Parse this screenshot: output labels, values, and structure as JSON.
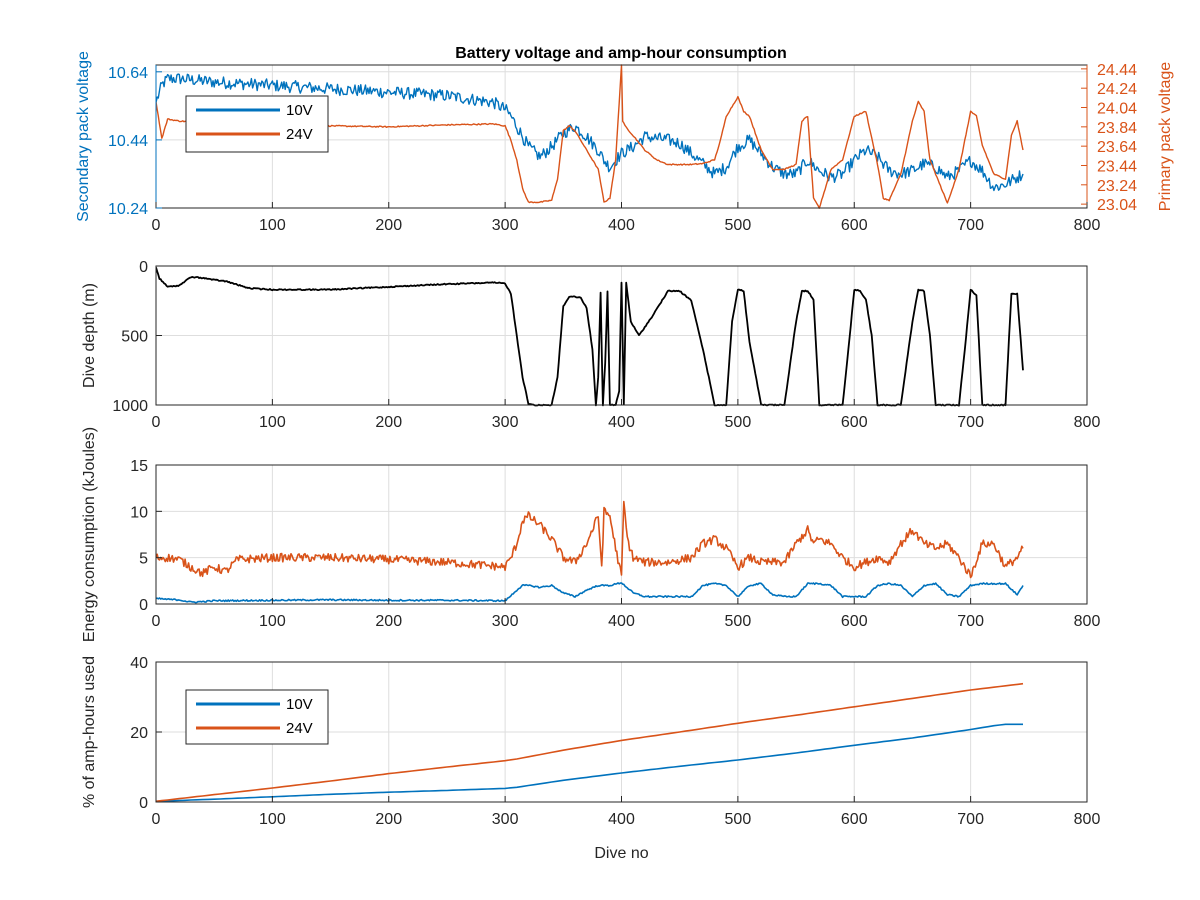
{
  "figure": {
    "title": "Battery voltage and amp-hour consumption"
  },
  "colors": {
    "blue": "#0072BD",
    "orange": "#D95319",
    "black": "#000000",
    "axis": "#262626"
  },
  "chart_data": [
    {
      "id": "voltage",
      "type": "line",
      "title": "Battery voltage and amp-hour consumption",
      "xlabel": "",
      "ylabel": "Secondary pack voltage",
      "ylabel_right": "Primary pack voltage",
      "xlim": [
        0,
        800
      ],
      "xticks": [
        0,
        100,
        200,
        300,
        400,
        500,
        600,
        700,
        800
      ],
      "ylim": [
        10.24,
        10.66
      ],
      "yticks": [
        10.24,
        10.44,
        10.64
      ],
      "ylim_right": [
        23.0,
        24.48
      ],
      "yticks_right": [
        23.04,
        23.24,
        23.44,
        23.64,
        23.84,
        24.04,
        24.24,
        24.44
      ],
      "grid": true,
      "legend": {
        "placement": "top-left",
        "entries": [
          "10V",
          "24V"
        ]
      },
      "series": [
        {
          "name": "10V",
          "color": "#0072BD",
          "axis": "left",
          "noise": 0.018,
          "x": [
            0,
            5,
            10,
            20,
            50,
            100,
            150,
            200,
            250,
            290,
            300,
            305,
            310,
            315,
            320,
            330,
            340,
            350,
            360,
            370,
            380,
            385,
            390,
            395,
            400,
            410,
            420,
            440,
            450,
            460,
            470,
            480,
            490,
            500,
            510,
            520,
            530,
            540,
            550,
            560,
            570,
            580,
            590,
            600,
            610,
            620,
            630,
            640,
            650,
            660,
            670,
            680,
            690,
            700,
            710,
            720,
            730,
            740,
            745
          ],
          "y": [
            10.55,
            10.6,
            10.62,
            10.62,
            10.61,
            10.6,
            10.59,
            10.58,
            10.57,
            10.55,
            10.53,
            10.51,
            10.48,
            10.45,
            10.42,
            10.39,
            10.42,
            10.46,
            10.48,
            10.45,
            10.41,
            10.38,
            10.36,
            10.38,
            10.4,
            10.42,
            10.45,
            10.44,
            10.43,
            10.4,
            10.37,
            10.34,
            10.36,
            10.42,
            10.44,
            10.4,
            10.36,
            10.34,
            10.34,
            10.38,
            10.35,
            10.33,
            10.34,
            10.38,
            10.41,
            10.39,
            10.35,
            10.34,
            10.35,
            10.37,
            10.36,
            10.33,
            10.35,
            10.38,
            10.35,
            10.3,
            10.31,
            10.33,
            10.34
          ]
        },
        {
          "name": "24V",
          "color": "#D95319",
          "axis": "right",
          "noise": 0.006,
          "x": [
            0,
            5,
            10,
            20,
            50,
            100,
            150,
            200,
            250,
            290,
            300,
            305,
            310,
            315,
            320,
            330,
            340,
            345,
            350,
            355,
            360,
            370,
            375,
            380,
            385,
            390,
            395,
            400,
            401,
            403,
            410,
            420,
            430,
            440,
            450,
            460,
            470,
            480,
            485,
            490,
            495,
            500,
            505,
            510,
            520,
            530,
            540,
            550,
            555,
            560,
            565,
            570,
            580,
            590,
            600,
            610,
            620,
            625,
            630,
            640,
            650,
            655,
            660,
            665,
            670,
            680,
            690,
            695,
            700,
            705,
            710,
            720,
            730,
            735,
            740,
            745
          ],
          "y": [
            24.1,
            23.72,
            23.92,
            23.9,
            23.88,
            23.86,
            23.85,
            23.84,
            23.86,
            23.87,
            23.85,
            23.7,
            23.5,
            23.2,
            23.06,
            23.06,
            23.08,
            23.3,
            23.8,
            23.85,
            23.8,
            23.6,
            23.5,
            23.4,
            23.06,
            23.1,
            23.5,
            24.48,
            23.9,
            23.85,
            23.75,
            23.6,
            23.5,
            23.45,
            23.45,
            23.45,
            23.46,
            23.5,
            23.7,
            23.95,
            24.05,
            24.15,
            24.0,
            23.95,
            23.6,
            23.4,
            23.4,
            23.45,
            23.9,
            23.95,
            23.1,
            23.0,
            23.4,
            23.5,
            23.95,
            24.0,
            23.45,
            23.1,
            23.08,
            23.35,
            23.9,
            24.1,
            24.0,
            23.5,
            23.35,
            23.05,
            23.4,
            23.7,
            24.0,
            23.95,
            23.65,
            23.35,
            23.3,
            23.75,
            23.9,
            23.6
          ]
        }
      ]
    },
    {
      "id": "depth",
      "type": "line",
      "title": "",
      "xlabel": "",
      "ylabel": "Dive depth (m)",
      "xlim": [
        0,
        800
      ],
      "xticks": [
        0,
        100,
        200,
        300,
        400,
        500,
        600,
        700,
        800
      ],
      "ylim": [
        0,
        1000
      ],
      "yticks": [
        0,
        500,
        1000
      ],
      "yreversed": true,
      "grid": true,
      "series": [
        {
          "name": "",
          "color": "#000000",
          "noise": 4,
          "x": [
            0,
            3,
            10,
            20,
            30,
            40,
            50,
            60,
            80,
            100,
            150,
            200,
            250,
            290,
            300,
            305,
            310,
            315,
            320,
            325,
            340,
            345,
            350,
            355,
            360,
            365,
            370,
            375,
            378,
            380,
            382,
            384,
            386,
            388,
            390,
            395,
            398,
            400,
            402,
            404,
            408,
            415,
            425,
            440,
            450,
            460,
            470,
            480,
            485,
            490,
            495,
            500,
            505,
            510,
            520,
            530,
            540,
            550,
            555,
            560,
            565,
            570,
            580,
            590,
            595,
            600,
            605,
            610,
            615,
            620,
            625,
            630,
            640,
            650,
            655,
            660,
            665,
            670,
            680,
            690,
            695,
            700,
            705,
            710,
            720,
            730,
            735,
            740,
            745
          ],
          "y": [
            10,
            90,
            150,
            140,
            80,
            85,
            100,
            110,
            160,
            170,
            170,
            150,
            130,
            120,
            125,
            200,
            500,
            800,
            990,
            1000,
            1000,
            800,
            290,
            220,
            220,
            230,
            300,
            600,
            1000,
            800,
            190,
            1000,
            700,
            180,
            1000,
            1000,
            900,
            120,
            1000,
            120,
            400,
            500,
            380,
            180,
            180,
            250,
            600,
            1000,
            1000,
            1000,
            400,
            170,
            180,
            550,
            1000,
            1000,
            1000,
            400,
            180,
            180,
            240,
            1000,
            1000,
            1000,
            600,
            170,
            180,
            240,
            500,
            1000,
            1000,
            1000,
            1000,
            400,
            170,
            180,
            500,
            1000,
            1000,
            1000,
            600,
            170,
            210,
            1000,
            1000,
            1000,
            200,
            200,
            750
          ]
        }
      ]
    },
    {
      "id": "energy",
      "type": "line",
      "title": "",
      "xlabel": "",
      "ylabel": "Energy consumption (kJoules)",
      "xlim": [
        0,
        800
      ],
      "xticks": [
        0,
        100,
        200,
        300,
        400,
        500,
        600,
        700,
        800
      ],
      "ylim": [
        0,
        15
      ],
      "yticks": [
        0,
        5,
        10,
        15
      ],
      "grid": true,
      "series": [
        {
          "name": "24V",
          "color": "#D95319",
          "noise": 0.45,
          "x": [
            0,
            10,
            20,
            30,
            40,
            50,
            60,
            70,
            100,
            150,
            200,
            250,
            300,
            305,
            310,
            315,
            320,
            330,
            340,
            350,
            360,
            370,
            380,
            383,
            385,
            390,
            395,
            400,
            402,
            405,
            410,
            420,
            440,
            460,
            470,
            480,
            490,
            500,
            510,
            520,
            530,
            540,
            550,
            560,
            565,
            570,
            580,
            590,
            600,
            610,
            620,
            630,
            640,
            650,
            660,
            670,
            680,
            690,
            700,
            710,
            720,
            730,
            740,
            745
          ],
          "y": [
            5,
            5,
            4.8,
            4,
            3.3,
            4,
            3.5,
            4.8,
            5,
            5,
            4.8,
            4.5,
            4,
            5,
            6.5,
            9,
            9.5,
            8.5,
            7,
            5,
            4.5,
            6.5,
            9.5,
            4,
            10,
            9.5,
            6,
            3,
            11,
            7,
            5,
            4.5,
            4.5,
            5,
            6.5,
            7,
            6,
            4,
            5,
            4.5,
            4.5,
            4.5,
            6.5,
            8,
            6.5,
            7,
            6.5,
            5,
            4,
            4.5,
            5,
            4.5,
            6.5,
            8,
            6.5,
            6,
            6.5,
            5,
            3,
            6.5,
            6.5,
            4,
            5,
            6
          ]
        },
        {
          "name": "10V",
          "color": "#0072BD",
          "noise": 0.08,
          "x": [
            0,
            10,
            20,
            30,
            40,
            50,
            100,
            150,
            200,
            250,
            300,
            305,
            310,
            315,
            320,
            330,
            340,
            350,
            360,
            370,
            380,
            390,
            400,
            410,
            420,
            440,
            460,
            470,
            480,
            490,
            500,
            510,
            520,
            530,
            540,
            550,
            560,
            570,
            580,
            590,
            600,
            610,
            620,
            630,
            640,
            650,
            660,
            670,
            680,
            690,
            700,
            710,
            720,
            730,
            740,
            745
          ],
          "y": [
            0.6,
            0.5,
            0.45,
            0.2,
            0.25,
            0.35,
            0.4,
            0.45,
            0.4,
            0.4,
            0.35,
            0.9,
            1.5,
            2,
            2,
            1.8,
            2,
            1.2,
            0.8,
            1.5,
            2,
            2,
            2.3,
            1.2,
            0.8,
            0.8,
            0.8,
            2,
            2.2,
            2,
            0.8,
            2,
            2.2,
            1,
            0.8,
            0.8,
            2.2,
            2.2,
            2,
            0.8,
            0.8,
            0.8,
            2,
            2.2,
            2,
            0.8,
            2,
            2.2,
            1,
            0.8,
            2,
            2.2,
            2.2,
            2.2,
            1,
            2
          ]
        }
      ]
    },
    {
      "id": "amphours",
      "type": "line",
      "title": "",
      "xlabel": "Dive no",
      "ylabel": "% of amp-hours used",
      "xlim": [
        0,
        800
      ],
      "xticks": [
        0,
        100,
        200,
        300,
        400,
        500,
        600,
        700,
        800
      ],
      "ylim": [
        0,
        40
      ],
      "yticks": [
        0,
        20,
        40
      ],
      "grid": true,
      "legend": {
        "placement": "top-left",
        "entries": [
          "10V",
          "24V"
        ]
      },
      "series": [
        {
          "name": "10V",
          "color": "#0072BD",
          "noise": 0,
          "x": [
            0,
            50,
            100,
            150,
            200,
            250,
            300,
            310,
            350,
            400,
            450,
            500,
            550,
            600,
            650,
            700,
            720,
            730,
            745
          ],
          "y": [
            0.2,
            0.8,
            1.5,
            2.2,
            2.8,
            3.3,
            3.9,
            4.2,
            6.2,
            8.3,
            10.2,
            12.0,
            14.0,
            16.2,
            18.3,
            20.7,
            21.8,
            22.2,
            22.2
          ]
        },
        {
          "name": "24V",
          "color": "#D95319",
          "noise": 0,
          "x": [
            0,
            50,
            100,
            150,
            200,
            250,
            300,
            310,
            350,
            400,
            450,
            500,
            550,
            600,
            650,
            700,
            745
          ],
          "y": [
            0.2,
            2.1,
            4.0,
            6.0,
            8.1,
            10.0,
            11.8,
            12.3,
            14.8,
            17.6,
            20.0,
            22.5,
            24.8,
            27.2,
            29.6,
            32.0,
            33.8
          ]
        }
      ]
    }
  ]
}
